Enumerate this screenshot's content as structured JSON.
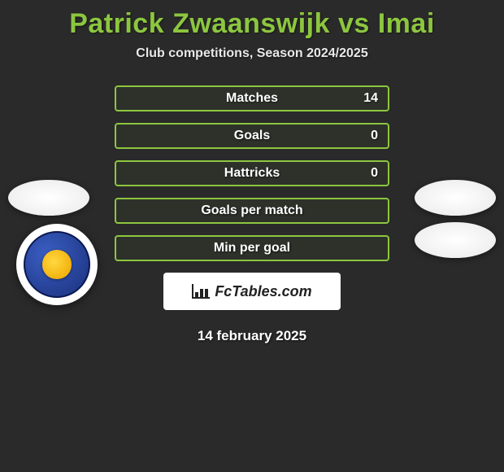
{
  "title": "Patrick Zwaanswijk vs Imai",
  "subtitle": "Club competitions, Season 2024/2025",
  "team_logo_name": "central-coast-mariners",
  "colors": {
    "accent": "#8cc63f",
    "background": "#2a2a2a",
    "text": "#ffffff",
    "logo_badge_bg": "#ffffff",
    "team_blue": "#1a2f7a",
    "team_yellow": "#f0a800"
  },
  "stats": [
    {
      "label": "Matches",
      "right_value": "14"
    },
    {
      "label": "Goals",
      "right_value": "0"
    },
    {
      "label": "Hattricks",
      "right_value": "0"
    },
    {
      "label": "Goals per match",
      "right_value": ""
    },
    {
      "label": "Min per goal",
      "right_value": ""
    }
  ],
  "site_logo_text": "FcTables.com",
  "footer_date": "14 february 2025"
}
